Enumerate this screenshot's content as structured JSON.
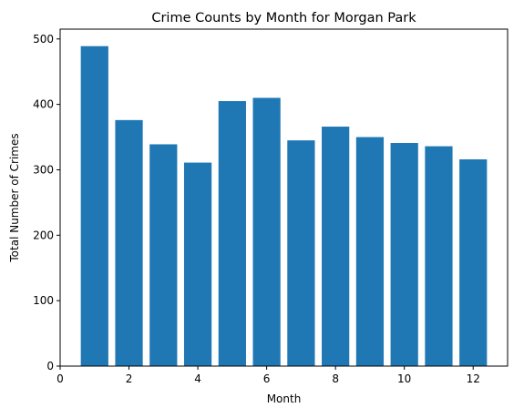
{
  "chart_data": {
    "type": "bar",
    "title": "Crime Counts by Month for Morgan Park",
    "xlabel": "Month",
    "ylabel": "Total Number of Crimes",
    "x": [
      1,
      2,
      3,
      4,
      5,
      6,
      7,
      8,
      9,
      10,
      11,
      12
    ],
    "values": [
      489,
      376,
      339,
      311,
      405,
      410,
      345,
      366,
      350,
      341,
      336,
      316
    ],
    "xlim": [
      0,
      13
    ],
    "ylim": [
      0,
      515
    ],
    "xticks": [
      0,
      2,
      4,
      6,
      8,
      10,
      12
    ],
    "yticks": [
      0,
      100,
      200,
      300,
      400,
      500
    ],
    "bar_width": 0.8,
    "bar_color": "#1f77b4",
    "grid": false,
    "legend": false
  }
}
